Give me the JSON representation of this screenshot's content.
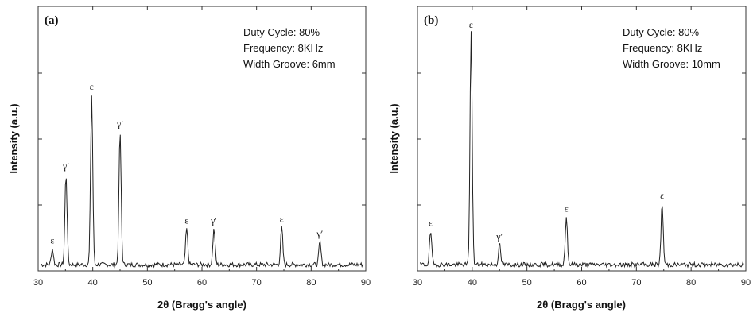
{
  "chart_data": [
    {
      "type": "line",
      "panel_label": "(a)",
      "xlabel": "2θ (Bragg's angle)",
      "ylabel": "Intensity (a.u.)",
      "xlim": [
        30,
        90
      ],
      "x_ticks": [
        "30",
        "40",
        "50",
        "60",
        "70",
        "80",
        "90"
      ],
      "y_tick_labels_shown": false,
      "info": [
        "Duty Cycle: 80%",
        "Frequency: 8KHz",
        "Width Groove: 6mm"
      ],
      "peaks": [
        {
          "x": 32.6,
          "y": 12,
          "label": "ε"
        },
        {
          "x": 35.1,
          "y": 68,
          "label": "γ′"
        },
        {
          "x": 39.8,
          "y": 128,
          "label": "ε"
        },
        {
          "x": 45.0,
          "y": 100,
          "label": "γ′"
        },
        {
          "x": 57.2,
          "y": 27,
          "label": "ε"
        },
        {
          "x": 62.2,
          "y": 27,
          "label": "γ′"
        },
        {
          "x": 74.6,
          "y": 28,
          "label": "ε"
        },
        {
          "x": 81.6,
          "y": 17,
          "label": "γ′"
        }
      ]
    },
    {
      "type": "line",
      "panel_label": "(b)",
      "xlabel": "2θ (Bragg's angle)",
      "ylabel": "Intensity (a.u.)",
      "xlim": [
        30,
        90
      ],
      "x_ticks": [
        "30",
        "40",
        "50",
        "60",
        "70",
        "80",
        "90"
      ],
      "y_tick_labels_shown": false,
      "info": [
        "Duty Cycle: 80%",
        "Frequency: 8KHz",
        "Width Groove: 10mm"
      ],
      "peaks": [
        {
          "x": 32.4,
          "y": 25,
          "label": "ε"
        },
        {
          "x": 39.8,
          "y": 175,
          "label": "ε"
        },
        {
          "x": 45.0,
          "y": 15,
          "label": "γ′"
        },
        {
          "x": 57.2,
          "y": 36,
          "label": "ε"
        },
        {
          "x": 74.7,
          "y": 46,
          "label": "ε"
        }
      ]
    }
  ]
}
